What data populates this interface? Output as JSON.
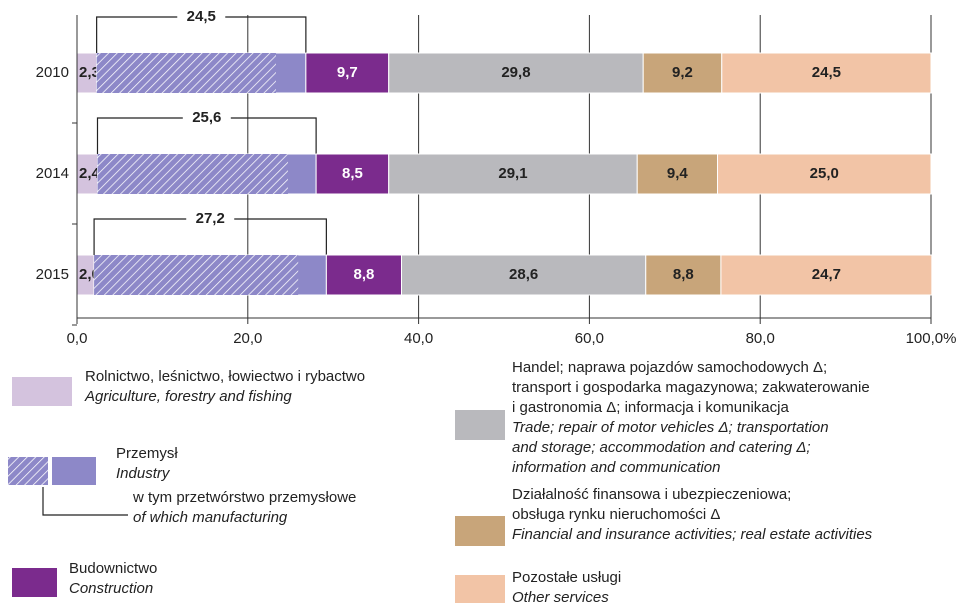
{
  "chart_data": {
    "type": "stacked-barh",
    "categories": [
      "2010",
      "2014",
      "2015"
    ],
    "xlim": [
      0,
      100
    ],
    "xticks": [
      {
        "value": 0,
        "label": "0,0"
      },
      {
        "value": 20,
        "label": "20,0"
      },
      {
        "value": 40,
        "label": "40,0"
      },
      {
        "value": 60,
        "label": "60,0"
      },
      {
        "value": 80,
        "label": "80,0"
      },
      {
        "value": 100,
        "label": "100,0%"
      }
    ],
    "grid": true,
    "series": [
      {
        "label_pl": [
          "Rolnictwo, leśnictwo, łowiectwo i rybactwo"
        ],
        "label_en": [
          "Agriculture, forestry and fishing"
        ],
        "color": "#d4c3de",
        "values": [
          2.3,
          2.4,
          2.0
        ],
        "value_labels": [
          "2,3",
          "2,4",
          "2,0"
        ]
      },
      {
        "label_pl": [
          "Przemysł"
        ],
        "label_en": [
          "Industry"
        ],
        "color": "#8d88c8",
        "values": [
          24.5,
          25.6,
          27.2
        ],
        "value_labels": [
          "24,5",
          "25,6",
          "27,2"
        ],
        "of_which": {
          "label_pl": [
            "w tym przetwórstwo przemysłowe"
          ],
          "label_en": [
            "of which manufacturing"
          ],
          "values": [
            21.0,
            22.3,
            23.9
          ]
        }
      },
      {
        "label_pl": [
          "Budownictwo"
        ],
        "label_en": [
          "Construction"
        ],
        "color": "#7b2b8d",
        "values": [
          9.7,
          8.5,
          8.8
        ],
        "value_labels": [
          "9,7",
          "8,5",
          "8,8"
        ]
      },
      {
        "label_pl": [
          "Handel; naprawa pojazdów samochodowych Δ;",
          "transport i gospodarka magazynowa; zakwaterowanie",
          "i gastronomia Δ; informacja i komunikacja"
        ],
        "label_en": [
          "Trade; repair of motor vehicles Δ; transportation",
          "and storage; accommodation and catering Δ;",
          "information and communication"
        ],
        "color": "#b9b9bd",
        "values": [
          29.8,
          29.1,
          28.6
        ],
        "value_labels": [
          "29,8",
          "29,1",
          "28,6"
        ]
      },
      {
        "label_pl": [
          "Działalność finansowa i ubezpieczeniowa;",
          "obsługa rynku nieruchomości Δ"
        ],
        "label_en": [
          "Financial and insurance activities; real estate activities"
        ],
        "color": "#c8a57a",
        "values": [
          9.2,
          9.4,
          8.8
        ],
        "value_labels": [
          "9,2",
          "9,4",
          "8,8"
        ]
      },
      {
        "label_pl": [
          "Pozostałe usługi"
        ],
        "label_en": [
          "Other services"
        ],
        "color": "#f2c4a6",
        "values": [
          24.5,
          25.0,
          24.7
        ],
        "value_labels": [
          "24,5",
          "25,0",
          "24,7"
        ]
      }
    ]
  }
}
